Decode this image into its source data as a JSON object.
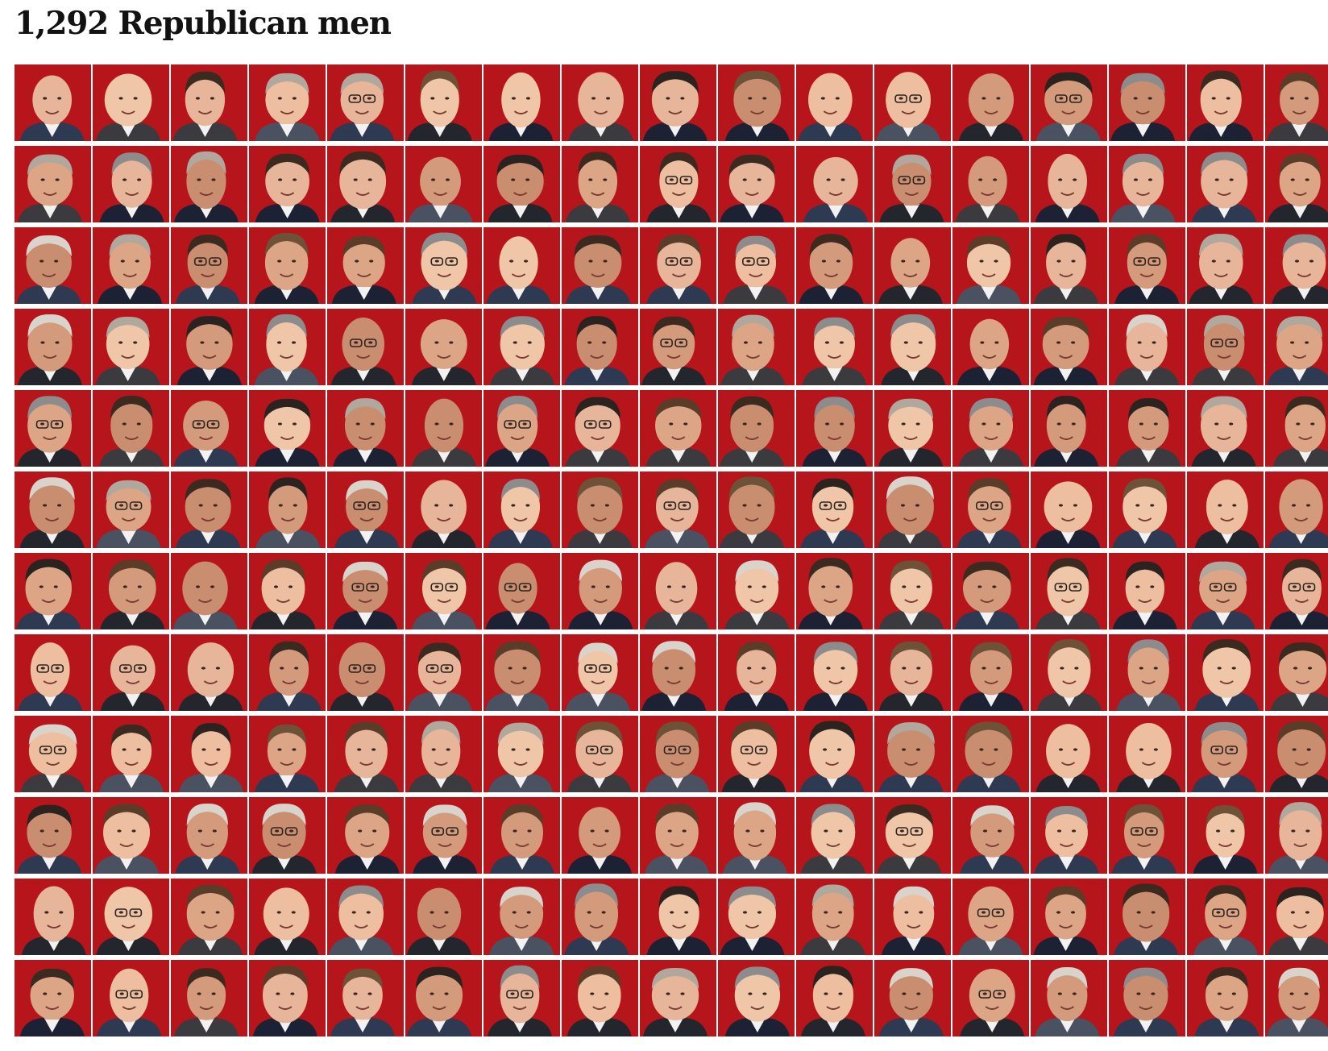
{
  "heading": "1,292 Republican men",
  "colors": {
    "tile_background": "#b5151b",
    "skin_tones": [
      "#e6b59a",
      "#dca686",
      "#f0c6a9",
      "#d49a7c",
      "#c98d70",
      "#edbfa0"
    ],
    "hair_tones": [
      "#3a2a20",
      "#8c8c8c",
      "#d8d4cc",
      "#5a3d28",
      "#2a2320",
      "#b0a89c",
      "#6e5238"
    ],
    "suit_tones": [
      "#1c2233",
      "#23262d",
      "#2e3a52",
      "#3b3b3f",
      "#4a5261"
    ],
    "shirt_tone": "#f2f2f2"
  },
  "grid": {
    "visible_rows": 12,
    "visible_columns": 17,
    "tile_icon": "portrait-photo"
  }
}
